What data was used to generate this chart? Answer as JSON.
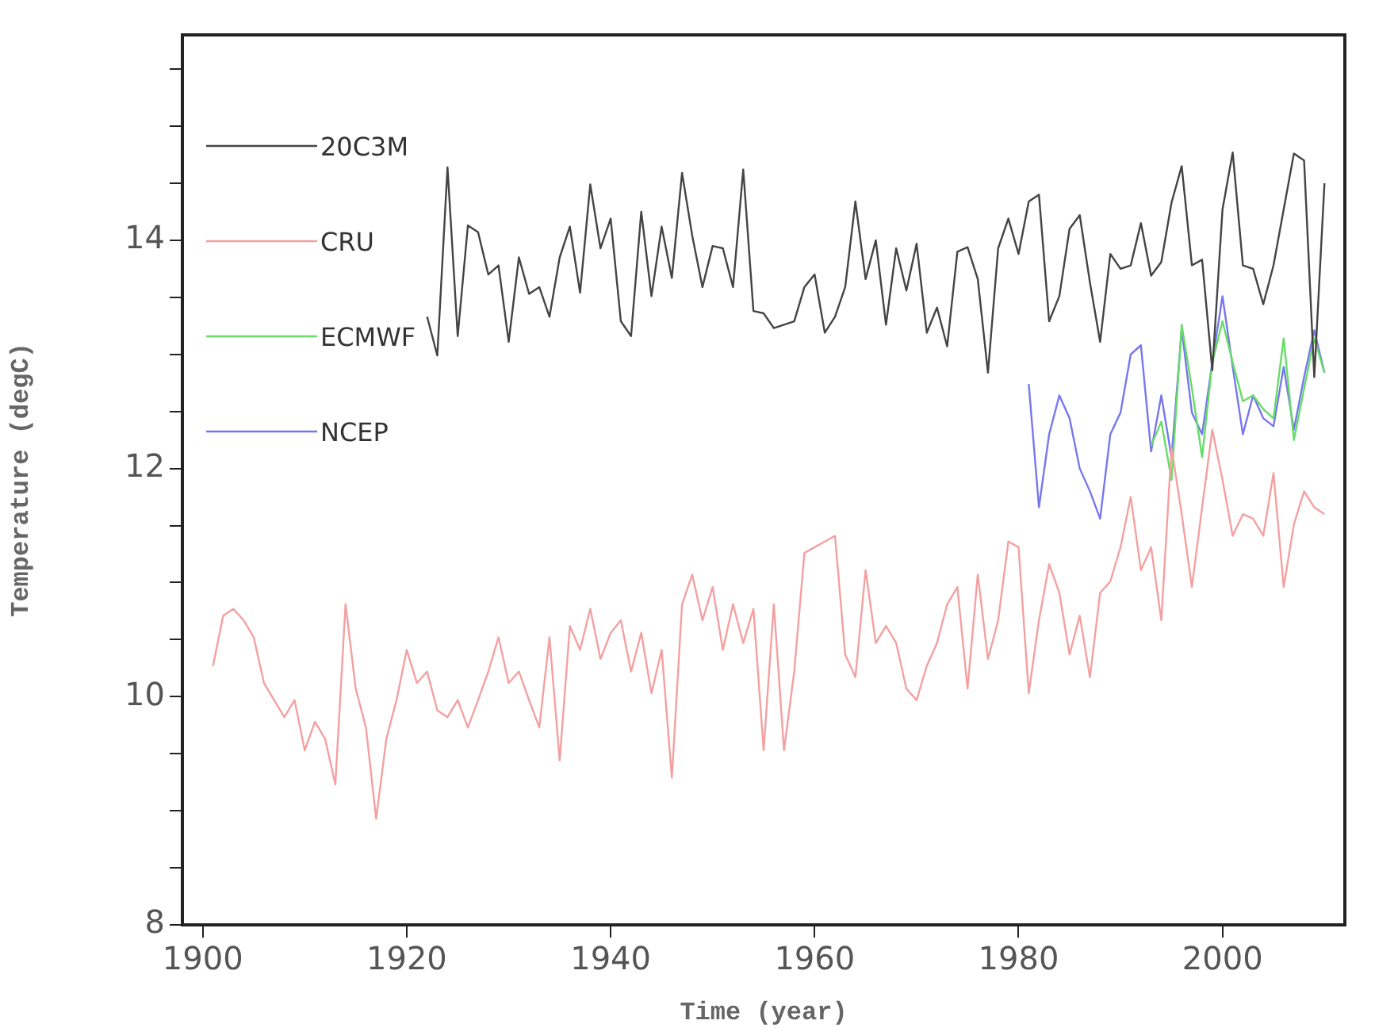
{
  "chart_data": {
    "type": "line",
    "xlabel": "Time (year)",
    "ylabel": "Temperature (degC)",
    "xlim": [
      1898,
      2012
    ],
    "xticks": [
      1900,
      1920,
      1940,
      1960,
      1980,
      2000
    ],
    "ylim": [
      8,
      15.8
    ],
    "yticks": [
      8,
      {
        "value": 8.5,
        "label": null
      },
      {
        "value": 9,
        "label": null
      },
      {
        "value": 9.5,
        "label": null
      },
      10,
      {
        "value": 10.5,
        "label": null
      },
      {
        "value": 11,
        "label": null
      },
      {
        "value": 11.5,
        "label": null
      },
      12,
      {
        "value": 12.5,
        "label": null
      },
      {
        "value": 13,
        "label": null
      },
      {
        "value": 13.5,
        "label": null
      },
      14,
      {
        "value": 14.5,
        "label": null
      },
      {
        "value": 15,
        "label": null
      },
      {
        "value": 15.5,
        "label": null
      }
    ],
    "grid": false,
    "legend": "top left",
    "marker": "none",
    "line_style": "solid",
    "series": [
      {
        "name": "20C3M",
        "color": "#444444",
        "x": [
          1922,
          1923,
          1924,
          1925,
          1926,
          1927,
          1928,
          1929,
          1930,
          1931,
          1932,
          1933,
          1934,
          1935,
          1936,
          1937,
          1938,
          1939,
          1940,
          1941,
          1942,
          1943,
          1944,
          1945,
          1946,
          1947,
          1948,
          1949,
          1950,
          1951,
          1952,
          1953,
          1954,
          1955,
          1956,
          1957,
          1958,
          1959,
          1960,
          1961,
          1962,
          1963,
          1964,
          1965,
          1966,
          1967,
          1968,
          1969,
          1970,
          1971,
          1972,
          1973,
          1974,
          1975,
          1976,
          1977,
          1978,
          1979,
          1980,
          1981,
          1982,
          1983,
          1984,
          1985,
          1986,
          1987,
          1988,
          1989,
          1990,
          1991,
          1992,
          1993,
          1994,
          1995,
          1996,
          1997,
          1998,
          1999,
          2000,
          2001,
          2002,
          2003,
          2004,
          2005,
          2006,
          2007,
          2008,
          2009,
          2010
        ],
        "values": [
          13.33,
          12.99,
          14.64,
          13.16,
          14.13,
          14.07,
          13.7,
          13.78,
          13.11,
          13.85,
          13.53,
          13.59,
          13.33,
          13.85,
          14.12,
          13.54,
          14.49,
          13.93,
          14.19,
          13.29,
          13.16,
          14.25,
          13.51,
          14.12,
          13.67,
          14.59,
          14.04,
          13.59,
          13.95,
          13.93,
          13.59,
          14.62,
          13.38,
          13.36,
          13.23,
          13.26,
          13.29,
          13.59,
          13.7,
          13.19,
          13.33,
          13.59,
          14.34,
          13.66,
          14.0,
          13.26,
          13.93,
          13.56,
          13.97,
          13.19,
          13.41,
          13.07,
          13.9,
          13.94,
          13.66,
          12.84,
          13.93,
          14.19,
          13.88,
          14.34,
          14.4,
          13.29,
          13.51,
          14.1,
          14.22,
          13.63,
          13.11,
          13.88,
          13.75,
          13.78,
          14.15,
          13.69,
          13.81,
          14.33,
          14.65,
          13.78,
          13.83,
          12.86,
          14.27,
          14.77,
          13.78,
          13.75,
          13.44,
          13.78,
          14.27,
          14.76,
          14.7,
          12.8,
          14.5
        ]
      },
      {
        "name": "CRU",
        "color": "#f4a0a0",
        "x": [
          1901,
          1902,
          1903,
          1904,
          1905,
          1906,
          1907,
          1908,
          1909,
          1910,
          1911,
          1912,
          1913,
          1914,
          1915,
          1916,
          1917,
          1918,
          1919,
          1920,
          1921,
          1922,
          1923,
          1924,
          1925,
          1926,
          1927,
          1928,
          1929,
          1930,
          1931,
          1932,
          1933,
          1934,
          1935,
          1936,
          1937,
          1938,
          1939,
          1940,
          1941,
          1942,
          1943,
          1944,
          1945,
          1946,
          1947,
          1948,
          1949,
          1950,
          1951,
          1952,
          1953,
          1954,
          1955,
          1956,
          1957,
          1958,
          1959,
          1960,
          1961,
          1962,
          1963,
          1964,
          1965,
          1966,
          1967,
          1968,
          1969,
          1970,
          1971,
          1972,
          1973,
          1974,
          1975,
          1976,
          1977,
          1978,
          1979,
          1980,
          1981,
          1982,
          1983,
          1984,
          1985,
          1986,
          1987,
          1988,
          1989,
          1990,
          1991,
          1992,
          1993,
          1994,
          1995,
          1996,
          1997,
          1998,
          1999,
          2000,
          2001,
          2002,
          2003,
          2004,
          2005,
          2006,
          2007,
          2008,
          2009,
          2010
        ],
        "values": [
          10.27,
          10.71,
          10.77,
          10.67,
          10.52,
          10.12,
          9.97,
          9.82,
          9.97,
          9.53,
          9.78,
          9.63,
          9.23,
          10.81,
          10.07,
          9.73,
          8.93,
          9.63,
          9.97,
          10.41,
          10.12,
          10.22,
          9.88,
          9.82,
          9.97,
          9.73,
          9.97,
          10.22,
          10.52,
          10.12,
          10.22,
          9.97,
          9.73,
          10.52,
          9.44,
          10.62,
          10.41,
          10.77,
          10.33,
          10.56,
          10.67,
          10.22,
          10.56,
          10.03,
          10.41,
          9.29,
          10.81,
          11.07,
          10.67,
          10.96,
          10.41,
          10.81,
          10.47,
          10.77,
          9.53,
          10.81,
          9.53,
          10.22,
          11.26,
          11.31,
          11.36,
          11.41,
          10.37,
          10.17,
          11.11,
          10.47,
          10.62,
          10.47,
          10.07,
          9.97,
          10.27,
          10.47,
          10.81,
          10.96,
          10.07,
          11.07,
          10.33,
          10.67,
          11.36,
          11.31,
          10.03,
          10.67,
          11.16,
          10.91,
          10.37,
          10.71,
          10.17,
          10.91,
          11.01,
          11.31,
          11.75,
          11.11,
          11.31,
          10.67,
          12.18,
          11.6,
          10.96,
          11.66,
          12.34,
          11.9,
          11.41,
          11.6,
          11.56,
          11.41,
          11.96,
          10.96,
          11.51,
          11.8,
          11.66,
          11.6
        ]
      },
      {
        "name": "ECMWF",
        "color": "#66dd66",
        "x": [
          1993,
          1994,
          1995,
          1996,
          1997,
          1998,
          1999,
          2000,
          2001,
          2002,
          2003,
          2004,
          2005,
          2006,
          2007,
          2008,
          2009,
          2010
        ],
        "values": [
          12.2,
          12.41,
          11.9,
          13.26,
          12.7,
          12.1,
          12.93,
          13.29,
          12.93,
          12.59,
          12.64,
          12.52,
          12.44,
          13.14,
          12.25,
          12.7,
          13.14,
          12.84
        ]
      },
      {
        "name": "NCEP",
        "color": "#7777ee",
        "x": [
          1981,
          1982,
          1983,
          1984,
          1985,
          1986,
          1987,
          1988,
          1989,
          1990,
          1991,
          1992,
          1993,
          1994,
          1995,
          1996,
          1997,
          1998,
          1999,
          2000,
          2001,
          2002,
          2003,
          2004,
          2005,
          2006,
          2007,
          2008,
          2009,
          2010
        ],
        "values": [
          12.74,
          11.66,
          12.3,
          12.64,
          12.44,
          12.0,
          11.8,
          11.56,
          12.3,
          12.49,
          13.0,
          13.08,
          12.15,
          12.64,
          12.1,
          13.22,
          12.49,
          12.3,
          12.93,
          13.51,
          12.89,
          12.3,
          12.64,
          12.44,
          12.37,
          12.89,
          12.34,
          12.8,
          13.21,
          12.84
        ]
      }
    ]
  }
}
